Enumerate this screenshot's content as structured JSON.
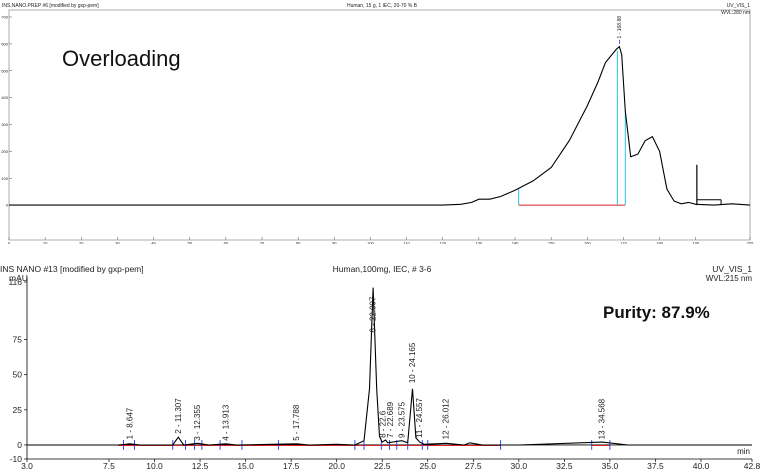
{
  "top_chart": {
    "header_left": "INS.NANO.PREP #6 [modified by gxp-pem]",
    "header_center": "Human, 15 g, 1 IEC, 20-70 % B",
    "header_right_1": "UV_VIS_1",
    "header_right_2": "WVL:280 nm",
    "annotation": "Overloading",
    "y_ticks": [
      "0",
      "100",
      "200",
      "300",
      "400",
      "500",
      "600",
      "700"
    ],
    "x_ticks": [
      "0",
      "10",
      "20",
      "30",
      "40",
      "50",
      "60",
      "70",
      "80",
      "90",
      "100",
      "110",
      "120",
      "130",
      "140",
      "150",
      "160",
      "170",
      "180",
      "190",
      "205"
    ],
    "peak_label": "1 - 168.88"
  },
  "bottom_chart": {
    "header_left": "INS NANO #13 [modified by gxp-pem]",
    "header_center": "Human,100mg, IEC, # 3-6",
    "header_right_1": "UV_VIS_1",
    "header_right_2": "WVL:215 nm",
    "y_unit": "mAU",
    "x_unit": "min",
    "purity_label": "Purity: 87.9%",
    "y_ticks": [
      "116",
      "75",
      "50",
      "25",
      "0",
      "-10"
    ],
    "x_ticks": [
      "3.0",
      "7.5",
      "10.0",
      "12.5",
      "15.0",
      "17.5",
      "20.0",
      "22.5",
      "25.0",
      "27.5",
      "30.0",
      "32.5",
      "35.0",
      "37.5",
      "40.0",
      "42.8"
    ]
  },
  "chart_data": [
    {
      "type": "line",
      "title": "Human, 15 g, 1 IEC, 20-70 % B",
      "xlim": [
        0,
        205
      ],
      "ylim": [
        -100,
        700
      ],
      "x": [
        0,
        120,
        125,
        128,
        130,
        133,
        136,
        140,
        145,
        150,
        155,
        160,
        163,
        165,
        168,
        168.88,
        169.5,
        170.5,
        172,
        174,
        176,
        178,
        180,
        182,
        184,
        186,
        188,
        190,
        195,
        200,
        205
      ],
      "y": [
        0,
        0,
        3,
        10,
        22,
        22,
        32,
        55,
        90,
        140,
        240,
        370,
        460,
        530,
        580,
        590,
        560,
        350,
        180,
        190,
        240,
        255,
        200,
        60,
        15,
        5,
        10,
        3,
        0,
        5,
        0
      ],
      "annotations": [
        "Overloading",
        "1 - 168.88"
      ]
    },
    {
      "type": "line",
      "title": "Human,100mg, IEC, # 3-6",
      "xlabel": "min",
      "ylabel": "mAU",
      "xlim": [
        3.0,
        42.8
      ],
      "ylim": [
        -10,
        116
      ],
      "x": [
        3.0,
        8.0,
        8.647,
        9.2,
        11.0,
        11.307,
        11.6,
        12.355,
        13.0,
        13.913,
        14.5,
        17.788,
        18.5,
        20.0,
        21.0,
        21.5,
        21.8,
        22.0,
        22.2,
        22.35,
        22.5,
        22.689,
        22.8,
        23.575,
        23.9,
        24.165,
        24.35,
        24.557,
        24.8,
        26.012,
        27.0,
        27.3,
        28.0,
        30.0,
        34.568,
        36.0,
        42.8
      ],
      "y": [
        0,
        0,
        0.8,
        0,
        0,
        5.5,
        0,
        1.2,
        0,
        0.8,
        0,
        0.8,
        0,
        0.5,
        0,
        3,
        40,
        112,
        40,
        6,
        2,
        3.5,
        1.5,
        3,
        1.5,
        40,
        5,
        2,
        0.5,
        1.2,
        0,
        1.5,
        0,
        0,
        2,
        0,
        0
      ],
      "peaks": [
        {
          "label": "1 - 8.647",
          "x": 8.647
        },
        {
          "label": "2 - 11.307",
          "x": 11.307
        },
        {
          "label": "3 - 12.355",
          "x": 12.355
        },
        {
          "label": "4 - 13.913",
          "x": 13.913
        },
        {
          "label": "5 - 17.788",
          "x": 17.788
        },
        {
          "label": "6 - 22.007",
          "x": 22.007
        },
        {
          "label": "7 - 22.689",
          "x": 22.689
        },
        {
          "label": "8 - 22.6",
          "x": 22.6
        },
        {
          "label": "9 - 23.575",
          "x": 23.575
        },
        {
          "label": "10 - 24.165",
          "x": 24.165
        },
        {
          "label": "11 - 24.557",
          "x": 24.557
        },
        {
          "label": "12 - 26.012",
          "x": 26.012
        },
        {
          "label": "13 - 34.568",
          "x": 34.568
        }
      ],
      "annotations": [
        "Purity: 87.9%"
      ]
    }
  ]
}
